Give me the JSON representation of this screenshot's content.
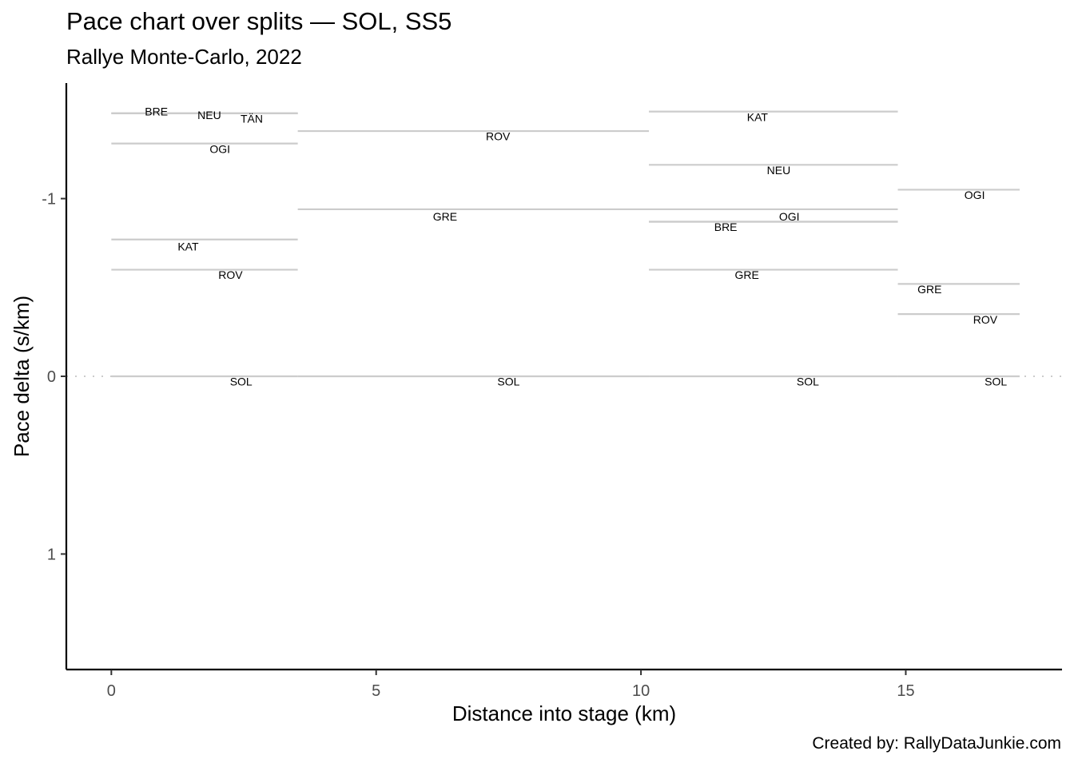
{
  "chart_data": {
    "type": "line",
    "title": "Pace chart over splits — SOL, SS5",
    "subtitle": "Rallye Monte-Carlo, 2022",
    "caption": "Created by: RallyDataJunkie.com",
    "xlabel": "Distance into stage (km)",
    "ylabel": "Pace delta (s/km)",
    "xlim": [
      -0.85,
      17.95
    ],
    "ylim": [
      1.65,
      -1.65
    ],
    "y_reversed": true,
    "x_ticks": [
      0,
      5,
      10,
      15
    ],
    "y_ticks": [
      -1,
      0,
      1
    ],
    "y_tick_labels": [
      "-1",
      "0",
      "1"
    ],
    "reference_line": 0,
    "grid": false,
    "segments": [
      {
        "code": "BRE",
        "x_start": 0,
        "x_end": 3.52,
        "pace_delta": -1.48,
        "label_x": 0.85,
        "label_pace": -1.49
      },
      {
        "code": "NEU",
        "x_start": 0,
        "x_end": 3.52,
        "pace_delta": -1.48,
        "label_x": 1.85,
        "label_pace": -1.47
      },
      {
        "code": "TÄN",
        "x_start": 0,
        "x_end": 3.52,
        "pace_delta": -1.48,
        "label_x": 2.65,
        "label_pace": -1.45
      },
      {
        "code": "OGI",
        "x_start": 0,
        "x_end": 3.52,
        "pace_delta": -1.31,
        "label_x": 2.05,
        "label_pace": -1.28
      },
      {
        "code": "KAT",
        "x_start": 0,
        "x_end": 3.52,
        "pace_delta": -0.77,
        "label_x": 1.45,
        "label_pace": -0.73
      },
      {
        "code": "ROV",
        "x_start": 0,
        "x_end": 3.52,
        "pace_delta": -0.6,
        "label_x": 2.25,
        "label_pace": -0.57
      },
      {
        "code": "SOL",
        "x_start": 0,
        "x_end": 3.52,
        "pace_delta": 0,
        "label_x": 2.45,
        "label_pace": 0.03
      },
      {
        "code": "ROV",
        "x_start": 3.52,
        "x_end": 10.15,
        "pace_delta": -1.38,
        "label_x": 7.3,
        "label_pace": -1.35
      },
      {
        "code": "GRE",
        "x_start": 3.52,
        "x_end": 14.85,
        "pace_delta": -0.94,
        "label_x": 6.3,
        "label_pace": -0.9
      },
      {
        "code": "SOL",
        "x_start": 3.52,
        "x_end": 10.15,
        "pace_delta": 0,
        "label_x": 7.5,
        "label_pace": 0.03
      },
      {
        "code": "KAT",
        "x_start": 10.15,
        "x_end": 14.85,
        "pace_delta": -1.49,
        "label_x": 12.2,
        "label_pace": -1.46
      },
      {
        "code": "NEU",
        "x_start": 10.15,
        "x_end": 14.85,
        "pace_delta": -1.19,
        "label_x": 12.6,
        "label_pace": -1.16
      },
      {
        "code": "OGI",
        "x_start": 10.15,
        "x_end": 14.85,
        "pace_delta": -0.87,
        "label_x": 12.8,
        "label_pace": -0.9
      },
      {
        "code": "BRE",
        "x_start": 10.15,
        "x_end": 14.85,
        "pace_delta": -0.87,
        "label_x": 11.6,
        "label_pace": -0.84
      },
      {
        "code": "GRE",
        "x_start": 10.15,
        "x_end": 14.85,
        "pace_delta": -0.6,
        "label_x": 12.0,
        "label_pace": -0.57
      },
      {
        "code": "SOL",
        "x_start": 10.15,
        "x_end": 14.85,
        "pace_delta": 0,
        "label_x": 13.15,
        "label_pace": 0.03
      },
      {
        "code": "OGI",
        "x_start": 14.85,
        "x_end": 17.15,
        "pace_delta": -1.05,
        "label_x": 16.3,
        "label_pace": -1.02
      },
      {
        "code": "GRE",
        "x_start": 14.85,
        "x_end": 17.15,
        "pace_delta": -0.52,
        "label_x": 15.45,
        "label_pace": -0.49
      },
      {
        "code": "ROV",
        "x_start": 14.85,
        "x_end": 17.15,
        "pace_delta": -0.35,
        "label_x": 16.5,
        "label_pace": -0.32
      },
      {
        "code": "SOL",
        "x_start": 14.85,
        "x_end": 17.15,
        "pace_delta": 0,
        "label_x": 16.7,
        "label_pace": 0.03
      }
    ],
    "colors": {
      "segment": "#cccccc",
      "reference": "#cccccc",
      "axis": "#000000",
      "tick_text": "#4d4d4d"
    }
  }
}
